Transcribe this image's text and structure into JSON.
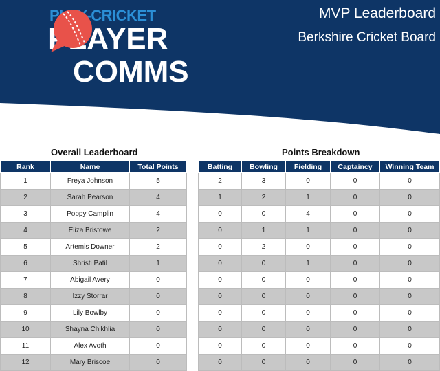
{
  "header": {
    "logo_line1": "PLAY-CRICKET",
    "logo_line2": "PLAYER",
    "logo_line3": "COMMS",
    "report_title": "MVP Leaderboard",
    "board_name": "Berkshire Cricket Board",
    "icon": "cricket-ball-speech-bubble-icon",
    "colors": {
      "navy": "#0e3566",
      "logo_blue": "#2b8fd6",
      "ball_red": "#e8524a"
    }
  },
  "overall": {
    "title": "Overall Leaderboard",
    "columns": [
      "Rank",
      "Name",
      "Total Points"
    ],
    "rows": [
      {
        "rank": "1",
        "name": "Freya Johnson",
        "total": "5"
      },
      {
        "rank": "2",
        "name": "Sarah Pearson",
        "total": "4"
      },
      {
        "rank": "3",
        "name": "Poppy Camplin",
        "total": "4"
      },
      {
        "rank": "4",
        "name": "Eliza Bristowe",
        "total": "2"
      },
      {
        "rank": "5",
        "name": "Artemis Downer",
        "total": "2"
      },
      {
        "rank": "6",
        "name": "Shristi Patil",
        "total": "1"
      },
      {
        "rank": "7",
        "name": "Abigail Avery",
        "total": "0"
      },
      {
        "rank": "8",
        "name": "Izzy Storrar",
        "total": "0"
      },
      {
        "rank": "9",
        "name": "Lily Bowlby",
        "total": "0"
      },
      {
        "rank": "10",
        "name": "Shayna Chikhlia",
        "total": "0"
      },
      {
        "rank": "11",
        "name": "Alex Avoth",
        "total": "0"
      },
      {
        "rank": "12",
        "name": "Mary Briscoe",
        "total": "0"
      }
    ]
  },
  "breakdown": {
    "title": "Points Breakdown",
    "columns": [
      "Batting",
      "Bowling",
      "Fielding",
      "Captaincy",
      "Winning Team"
    ],
    "rows": [
      [
        "2",
        "3",
        "0",
        "0",
        "0"
      ],
      [
        "1",
        "2",
        "1",
        "0",
        "0"
      ],
      [
        "0",
        "0",
        "4",
        "0",
        "0"
      ],
      [
        "0",
        "1",
        "1",
        "0",
        "0"
      ],
      [
        "0",
        "2",
        "0",
        "0",
        "0"
      ],
      [
        "0",
        "0",
        "1",
        "0",
        "0"
      ],
      [
        "0",
        "0",
        "0",
        "0",
        "0"
      ],
      [
        "0",
        "0",
        "0",
        "0",
        "0"
      ],
      [
        "0",
        "0",
        "0",
        "0",
        "0"
      ],
      [
        "0",
        "0",
        "0",
        "0",
        "0"
      ],
      [
        "0",
        "0",
        "0",
        "0",
        "0"
      ],
      [
        "0",
        "0",
        "0",
        "0",
        "0"
      ]
    ]
  }
}
